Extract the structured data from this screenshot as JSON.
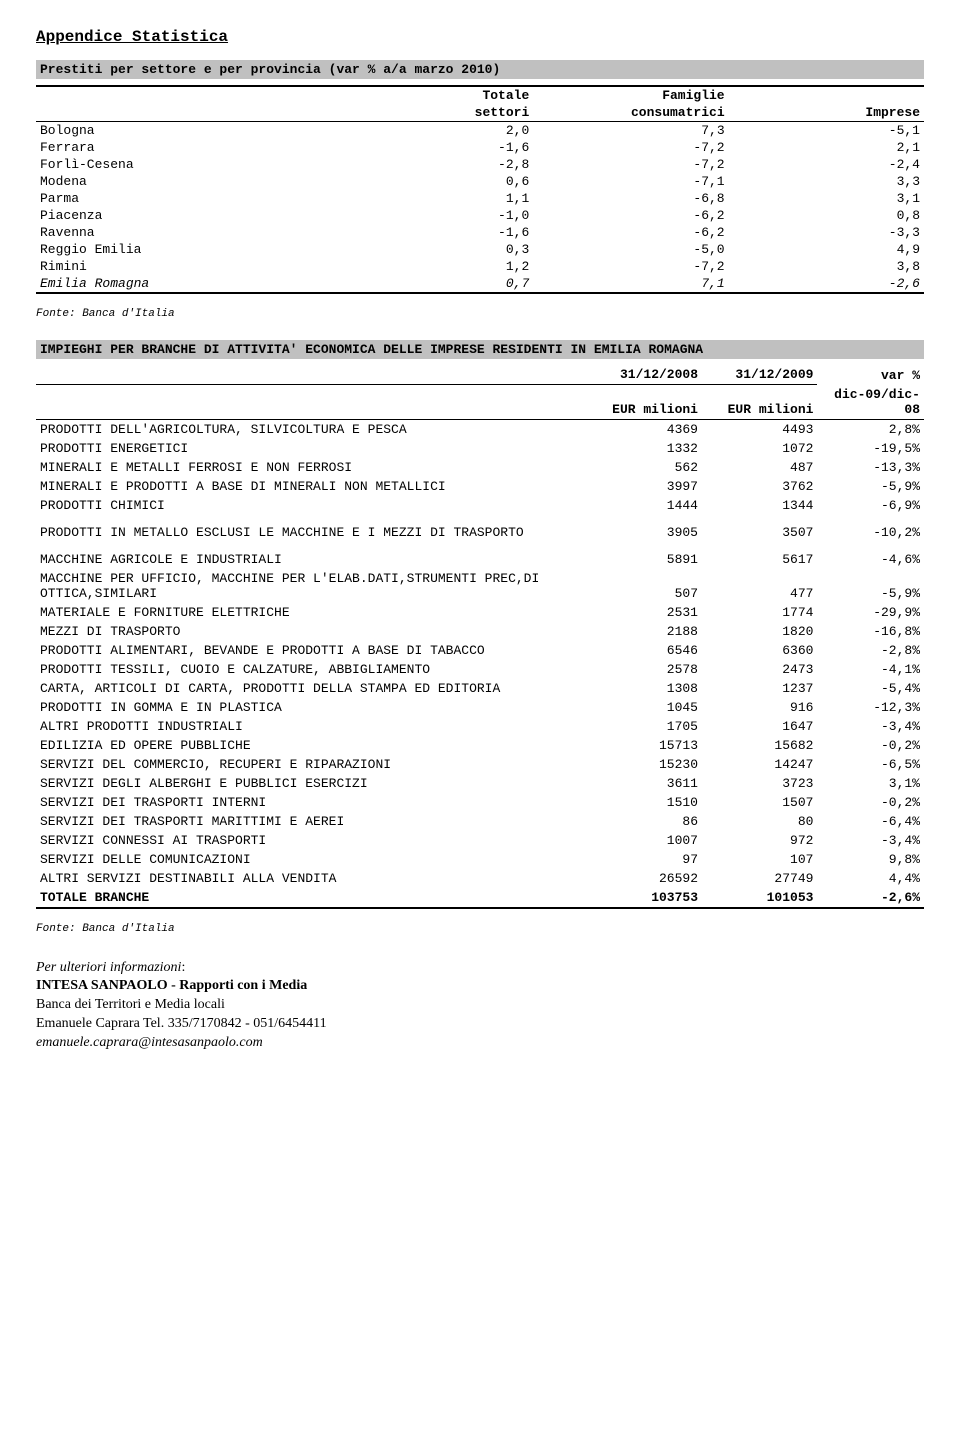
{
  "page_title": "Appendice Statistica",
  "section1": {
    "banner": "Prestiti per settore e per provincia (var % a/a marzo 2010)",
    "header_row1": [
      "",
      "Totale",
      "Famiglie",
      ""
    ],
    "header_row2": [
      "",
      "settori",
      "consumatrici",
      "Imprese"
    ],
    "rows": [
      {
        "label": "Bologna",
        "v": [
          "2,0",
          "7,3",
          "-5,1"
        ]
      },
      {
        "label": "Ferrara",
        "v": [
          "-1,6",
          "-7,2",
          "2,1"
        ]
      },
      {
        "label": "Forlì-Cesena",
        "v": [
          "-2,8",
          "-7,2",
          "-2,4"
        ]
      },
      {
        "label": "Modena",
        "v": [
          "0,6",
          "-7,1",
          "3,3"
        ]
      },
      {
        "label": "Parma",
        "v": [
          "1,1",
          "-6,8",
          "3,1"
        ]
      },
      {
        "label": "Piacenza",
        "v": [
          "-1,0",
          "-6,2",
          "0,8"
        ]
      },
      {
        "label": "Ravenna",
        "v": [
          "-1,6",
          "-6,2",
          "-3,3"
        ]
      },
      {
        "label": "Reggio Emilia",
        "v": [
          "0,3",
          "-5,0",
          "4,9"
        ]
      },
      {
        "label": "Rimini",
        "v": [
          "1,2",
          "-7,2",
          "3,8"
        ]
      },
      {
        "label": "Emilia Romagna",
        "v": [
          "0,7",
          "7,1",
          "-2,6"
        ],
        "italic": true
      }
    ],
    "source": "Fonte: Banca d'Italia"
  },
  "section2": {
    "banner": "IMPIEGHI PER BRANCHE DI ATTIVITA' ECONOMICA DELLE IMPRESE RESIDENTI IN EMILIA ROMAGNA",
    "hdr_dates": [
      "31/12/2008",
      "31/12/2009"
    ],
    "hdr_var": "var %",
    "hdr_units": [
      "EUR milioni",
      "EUR milioni"
    ],
    "hdr_var2": "dic-09/dic-08",
    "rows": [
      {
        "label": "PRODOTTI DELL'AGRICOLTURA, SILVICOLTURA E PESCA",
        "a": "4369",
        "b": "4493",
        "c": "2,8%"
      },
      {
        "label": "PRODOTTI ENERGETICI",
        "a": "1332",
        "b": "1072",
        "c": "-19,5%"
      },
      {
        "label": "MINERALI E METALLI FERROSI E NON FERROSI",
        "a": "562",
        "b": "487",
        "c": "-13,3%"
      },
      {
        "label": "MINERALI E PRODOTTI A BASE DI MINERALI NON METALLICI",
        "a": "3997",
        "b": "3762",
        "c": "-5,9%"
      },
      {
        "label": "PRODOTTI CHIMICI",
        "a": "1444",
        "b": "1344",
        "c": "-6,9%"
      },
      {
        "label": "PRODOTTI IN METALLO ESCLUSI LE MACCHINE E I MEZZI DI TRASPORTO",
        "a": "3905",
        "b": "3507",
        "c": "-10,2%",
        "sep": true
      },
      {
        "label": "MACCHINE AGRICOLE E INDUSTRIALI",
        "a": "5891",
        "b": "5617",
        "c": "-4,6%",
        "sep": true
      },
      {
        "label": "MACCHINE PER UFFICIO, MACCHINE PER L'ELAB.DATI,STRUMENTI PREC,DI OTTICA,SIMILARI",
        "a": "507",
        "b": "477",
        "c": "-5,9%"
      },
      {
        "label": "MATERIALE E FORNITURE ELETTRICHE",
        "a": "2531",
        "b": "1774",
        "c": "-29,9%"
      },
      {
        "label": "MEZZI DI TRASPORTO",
        "a": "2188",
        "b": "1820",
        "c": "-16,8%"
      },
      {
        "label": "PRODOTTI ALIMENTARI, BEVANDE E PRODOTTI A BASE DI TABACCO",
        "a": "6546",
        "b": "6360",
        "c": "-2,8%"
      },
      {
        "label": "PRODOTTI TESSILI, CUOIO E CALZATURE, ABBIGLIAMENTO",
        "a": "2578",
        "b": "2473",
        "c": "-4,1%"
      },
      {
        "label": "CARTA, ARTICOLI DI CARTA, PRODOTTI DELLA STAMPA ED EDITORIA",
        "a": "1308",
        "b": "1237",
        "c": "-5,4%"
      },
      {
        "label": "PRODOTTI IN GOMMA E IN PLASTICA",
        "a": "1045",
        "b": "916",
        "c": "-12,3%"
      },
      {
        "label": "ALTRI PRODOTTI INDUSTRIALI",
        "a": "1705",
        "b": "1647",
        "c": "-3,4%"
      },
      {
        "label": "EDILIZIA ED OPERE PUBBLICHE",
        "a": "15713",
        "b": "15682",
        "c": "-0,2%"
      },
      {
        "label": "SERVIZI DEL COMMERCIO, RECUPERI E RIPARAZIONI",
        "a": "15230",
        "b": "14247",
        "c": "-6,5%"
      },
      {
        "label": "SERVIZI DEGLI ALBERGHI E PUBBLICI ESERCIZI",
        "a": "3611",
        "b": "3723",
        "c": "3,1%"
      },
      {
        "label": "SERVIZI DEI TRASPORTI INTERNI",
        "a": "1510",
        "b": "1507",
        "c": "-0,2%"
      },
      {
        "label": "SERVIZI DEI TRASPORTI MARITTIMI E AEREI",
        "a": "86",
        "b": "80",
        "c": "-6,4%"
      },
      {
        "label": "SERVIZI CONNESSI AI TRASPORTI",
        "a": "1007",
        "b": "972",
        "c": "-3,4%"
      },
      {
        "label": "SERVIZI DELLE COMUNICAZIONI",
        "a": "97",
        "b": "107",
        "c": "9,8%"
      },
      {
        "label": "ALTRI SERVIZI DESTINABILI ALLA VENDITA",
        "a": "26592",
        "b": "27749",
        "c": "4,4%"
      }
    ],
    "total": {
      "label": "TOTALE BRANCHE",
      "a": "103753",
      "b": "101053",
      "c": "-2,6%"
    },
    "source": "Fonte: Banca d'Italia"
  },
  "footer": {
    "lead": "Per ulteriori informazioni",
    "org": "INTESA SANPAOLO - Rapporti con i Media",
    "line2": "Banca dei Territori e Media locali",
    "line3": "Emanuele Caprara  Tel. 335/7170842 - 051/6454411",
    "email": "emanuele.caprara@intesasanpaolo.com"
  }
}
